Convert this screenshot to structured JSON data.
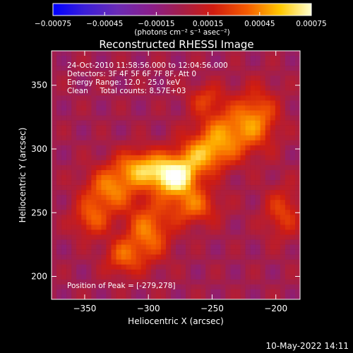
{
  "chart_data": {
    "type": "heatmap",
    "title": "Reconstructed RHESSI Image",
    "xlabel": "Heliocentric X (arcsec)",
    "ylabel": "Heliocentric Y (arcsec)",
    "xlim": [
      -376,
      -181
    ],
    "ylim": [
      182,
      377
    ],
    "x_ticks": [
      {
        "value": -350,
        "label": "−350"
      },
      {
        "value": -300,
        "label": "−300"
      },
      {
        "value": -250,
        "label": "−250"
      },
      {
        "value": -200,
        "label": "−200"
      }
    ],
    "y_ticks": [
      {
        "value": 200,
        "label": "200"
      },
      {
        "value": 250,
        "label": "250"
      },
      {
        "value": 300,
        "label": "300"
      },
      {
        "value": 350,
        "label": "350"
      }
    ],
    "colorbar": {
      "range": [
        -0.00075,
        0.00075
      ],
      "ticks": [
        {
          "value": -0.00075,
          "label": "−0.00075"
        },
        {
          "value": -0.00045,
          "label": "−0.00045"
        },
        {
          "value": -0.00015,
          "label": "−0.00015"
        },
        {
          "value": 0.00015,
          "label": "0.00015"
        },
        {
          "value": 0.00045,
          "label": "0.00045"
        },
        {
          "value": 0.00075,
          "label": "0.00075"
        }
      ],
      "units_label": "(photons cm⁻² s⁻¹ asec⁻²)",
      "colormap": [
        "#0000ff",
        "#6a2bb5",
        "#7a1fa0",
        "#a51e48",
        "#d01c10",
        "#f45a00",
        "#ffb000",
        "#ffff9a",
        "#ffffff"
      ]
    },
    "annotations": [
      "24-Oct-2010 11:58:56.000 to 12:04:56.000",
      "Detectors: 3F 4F 5F 6F 7F 8F, Att 0",
      "Energy Range: 12.0 - 25.0 keV",
      "Clean     Total counts: 8.57E+03"
    ],
    "peak_label": "Position of Peak = [-279,278]",
    "peak": {
      "x": -279,
      "y": 278,
      "value": 0.00075
    },
    "grid": false,
    "image": {
      "rows": 50,
      "cols": 50,
      "background": -0.0002,
      "sources": [
        {
          "x": -279,
          "y": 278,
          "amp": 0.00085,
          "sx": 12,
          "sy": 10
        },
        {
          "x": -305,
          "y": 285,
          "amp": 0.00055,
          "sx": 14,
          "sy": 10
        },
        {
          "x": -330,
          "y": 268,
          "amp": 0.00045,
          "sx": 14,
          "sy": 12
        },
        {
          "x": -258,
          "y": 295,
          "amp": 0.00045,
          "sx": 14,
          "sy": 10
        },
        {
          "x": -240,
          "y": 312,
          "amp": 0.00045,
          "sx": 16,
          "sy": 14
        },
        {
          "x": -215,
          "y": 325,
          "amp": 0.0004,
          "sx": 12,
          "sy": 16
        },
        {
          "x": -300,
          "y": 235,
          "amp": 0.00045,
          "sx": 12,
          "sy": 16
        },
        {
          "x": -320,
          "y": 215,
          "amp": 0.00035,
          "sx": 10,
          "sy": 10
        },
        {
          "x": -265,
          "y": 255,
          "amp": 0.0004,
          "sx": 14,
          "sy": 10
        },
        {
          "x": -345,
          "y": 245,
          "amp": 0.00035,
          "sx": 10,
          "sy": 10
        },
        {
          "x": -195,
          "y": 250,
          "amp": 0.0003,
          "sx": 10,
          "sy": 14
        },
        {
          "x": -255,
          "y": 340,
          "amp": 0.00025,
          "sx": 10,
          "sy": 8
        }
      ]
    }
  },
  "footer": {
    "date": "10-May-2022 14:11"
  }
}
